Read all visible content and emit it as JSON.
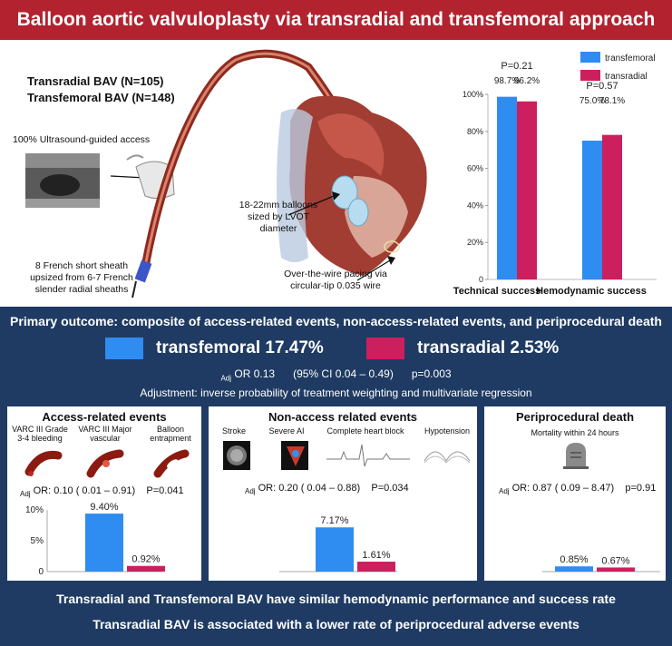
{
  "title": "Balloon aortic valvuloplasty via transradial and transfemoral approach",
  "cohorts": {
    "transradial": "Transradial BAV (N=105)",
    "transfemoral": "Transfemoral BAV (N=148)"
  },
  "illustration": {
    "ultrasound": "100% Ultrasound-guided access",
    "balloons": "18-22mm balloons sized by LVOT diameter",
    "sheath": "8 French short sheath upsized from 6-7 French slender radial sheaths",
    "pacing": "Over-the-wire pacing via circular-tip 0.035 wire"
  },
  "colors": {
    "transfemoral": "#2f8cf0",
    "transradial": "#cc1f5e",
    "panel": "#1f3b63",
    "title_bg": "#b3222f"
  },
  "success_chart": {
    "legend": [
      "transfemoral",
      "transradial"
    ],
    "groups": [
      {
        "label": "Technical success",
        "p": "P=0.21",
        "value_labels": [
          "98.7%",
          "96.2%"
        ]
      },
      {
        "label": "Hemodynamic success",
        "p": "P=0.57",
        "value_labels": [
          "75.0%",
          "78.1%"
        ]
      }
    ],
    "y_ticks": [
      "0",
      "20%",
      "40%",
      "60%",
      "80%",
      "100%"
    ]
  },
  "primary": {
    "heading": "Primary outcome: composite of access-related events, non-access-related events, and periprocedural death",
    "transfemoral": "transfemoral 17.47%",
    "transradial": "transradial 2.53%",
    "adj": "Adj",
    "or": "OR 0.13",
    "ci": "(95% CI 0.04 – 0.49)",
    "p": "p=0.003",
    "adjustment": "Adjustment: inverse probability of treatment weighting and multivariate regression"
  },
  "access": {
    "title": "Access-related events",
    "items": [
      "VARC III Grade 3-4 bleeding",
      "VARC III Major vascular",
      "Balloon entrapment"
    ],
    "adj": "Adj",
    "or": "OR: 0.10 ( 0.01 – 0.91)",
    "p": "P=0.041",
    "value_labels": [
      "9.40%",
      "0.92%"
    ],
    "y_ticks": [
      "0",
      "5%",
      "10%"
    ]
  },
  "nonaccess": {
    "title": "Non-access related events",
    "items": [
      "Stroke",
      "Severe AI",
      "Complete heart block",
      "Hypotension"
    ],
    "adj": "Adj",
    "or": "OR: 0.20 ( 0.04 – 0.88)",
    "p": "P=0.034",
    "value_labels": [
      "7.17%",
      "1.61%"
    ]
  },
  "death": {
    "title": "Periprocedural death",
    "subtitle": "Mortality within 24 hours",
    "adj": "Adj",
    "or": "OR: 0.87 ( 0.09 – 8.47)",
    "p": "p=0.91",
    "value_labels": [
      "0.85%",
      "0.67%"
    ]
  },
  "conclusions": [
    "Transradial and Transfemoral BAV have similar hemodynamic performance and success rate",
    "Transradial BAV is associated with a lower rate of periprocedural adverse events"
  ],
  "chart_data": [
    {
      "type": "bar",
      "categories": [
        "Technical success",
        "Hemodynamic success"
      ],
      "series": [
        {
          "name": "transfemoral",
          "values": [
            98.7,
            75.0
          ]
        },
        {
          "name": "transradial",
          "values": [
            96.2,
            78.1
          ]
        }
      ],
      "ylim": [
        0,
        100
      ],
      "legend": "top-right"
    },
    {
      "type": "bar",
      "title": "Access-related events",
      "categories": [
        "transfemoral",
        "transradial"
      ],
      "values": [
        9.4,
        0.92
      ],
      "ylim": [
        0,
        10
      ]
    },
    {
      "type": "bar",
      "title": "Non-access related events",
      "categories": [
        "transfemoral",
        "transradial"
      ],
      "values": [
        7.17,
        1.61
      ],
      "ylim": [
        0,
        10
      ]
    },
    {
      "type": "bar",
      "title": "Periprocedural death",
      "categories": [
        "transfemoral",
        "transradial"
      ],
      "values": [
        0.85,
        0.67
      ],
      "ylim": [
        0,
        10
      ]
    }
  ]
}
